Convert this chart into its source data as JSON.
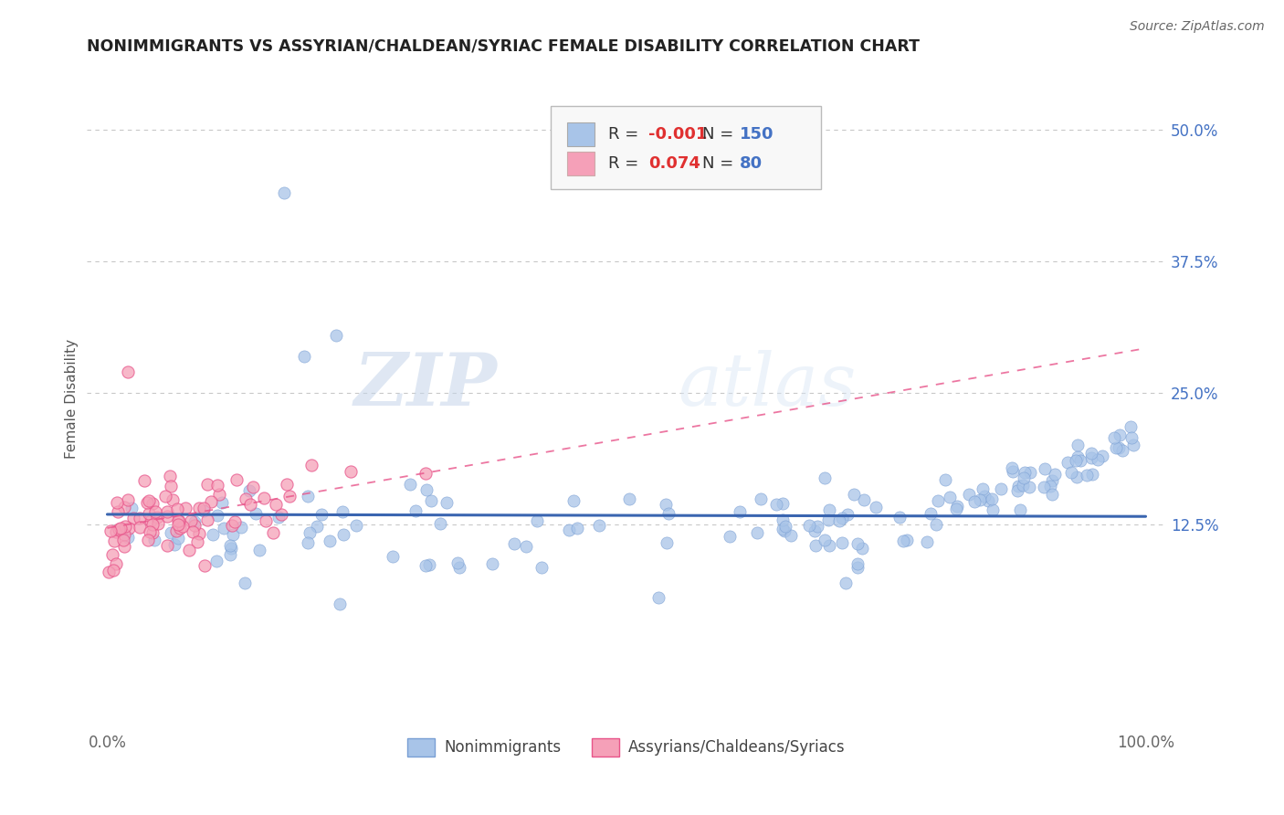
{
  "title": "NONIMMIGRANTS VS ASSYRIAN/CHALDEAN/SYRIAC FEMALE DISABILITY CORRELATION CHART",
  "source_text": "Source: ZipAtlas.com",
  "ylabel": "Female Disability",
  "legend_label1": "Nonimmigrants",
  "legend_label2": "Assyrians/Chaldeans/Syriacs",
  "r1": "-0.001",
  "n1": "150",
  "r2": "0.074",
  "n2": "80",
  "xlim": [
    -0.02,
    1.02
  ],
  "ylim": [
    -0.07,
    0.56
  ],
  "xtick_positions": [
    0.0,
    1.0
  ],
  "xtick_labels": [
    "0.0%",
    "100.0%"
  ],
  "ytick_vals": [
    0.125,
    0.25,
    0.375,
    0.5
  ],
  "ytick_labels": [
    "12.5%",
    "25.0%",
    "37.5%",
    "50.0%"
  ],
  "color_blue": "#a8c4e8",
  "color_pink": "#f5a0b8",
  "color_blue_edge": "#7a9fd4",
  "color_pink_edge": "#e8548a",
  "trendline_blue": "#3a65b0",
  "trendline_pink": "#e8548a",
  "watermark_zip": "ZIP",
  "watermark_atlas": "atlas",
  "background_color": "#ffffff",
  "grid_color": "#c8c8c8"
}
